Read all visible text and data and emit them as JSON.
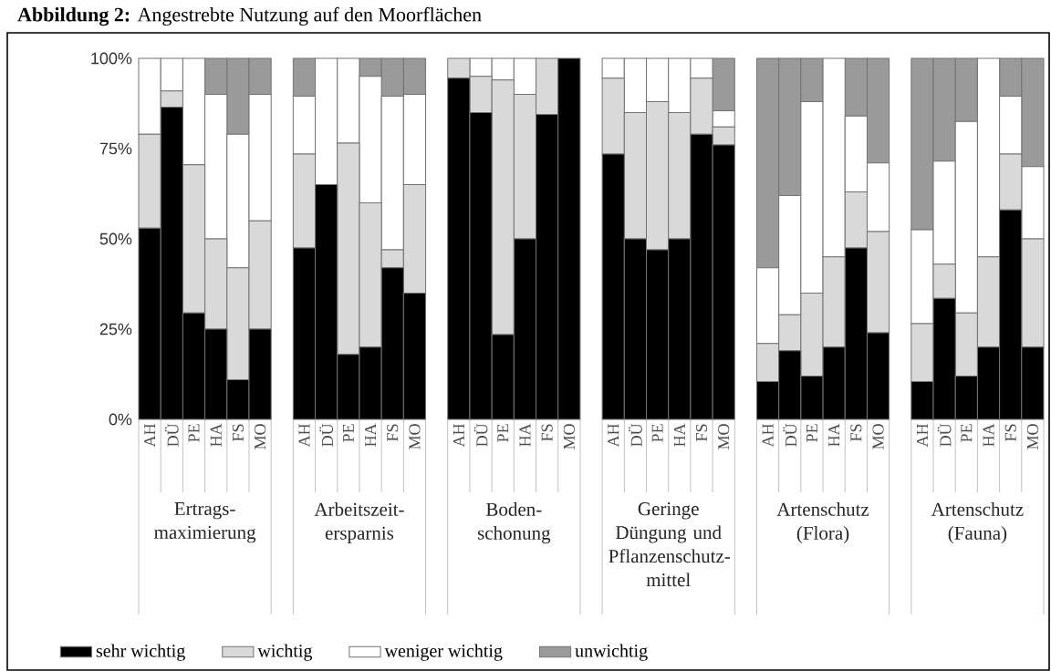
{
  "chart_data": [
    {
      "type": "bar",
      "stacked": true,
      "title": "**Abbildung 2:** Angestrebte Nutzung auf den Moorflächen",
      "categories": [
        "AH",
        "DÜ",
        "PE",
        "HA",
        "FS",
        "MO"
      ],
      "xlabel": "Ertrags-maximierung",
      "series": [
        {
          "name": "sehr wichtig",
          "color": "#000000",
          "values": [
            53,
            86.5,
            29.5,
            25,
            11,
            25
          ]
        },
        {
          "name": "wichtig",
          "color": "#d9d9d9",
          "values": [
            26,
            4.5,
            41,
            25,
            31,
            30
          ]
        },
        {
          "name": "weniger wichtig",
          "color": "#ffffff",
          "values": [
            21,
            9,
            29.5,
            40,
            37,
            35
          ]
        },
        {
          "name": "unwichtig",
          "color": "#9a9a9a",
          "values": [
            0,
            0,
            0,
            10,
            21,
            10
          ]
        }
      ],
      "ylim": [
        0,
        100
      ],
      "yticks": [
        {
          "value": 0,
          "label": "0%"
        },
        {
          "value": 25,
          "label": "25%"
        },
        {
          "value": 50,
          "label": "50%"
        },
        {
          "value": 75,
          "label": "75%"
        },
        {
          "value": 100,
          "label": "100%"
        }
      ],
      "legend": "bottom"
    },
    {
      "type": "bar",
      "stacked": true,
      "categories": [
        "AH",
        "DÜ",
        "PE",
        "HA",
        "FS",
        "MO"
      ],
      "xlabel": "Arbeitszeit-ersparnis",
      "series": [
        {
          "color": "#000000",
          "values": [
            47.5,
            65,
            18,
            20,
            42,
            35
          ]
        },
        {
          "color": "#d9d9d9",
          "values": [
            26,
            0,
            58.5,
            40,
            5,
            30
          ]
        },
        {
          "color": "#ffffff",
          "values": [
            16,
            35,
            23.5,
            35,
            42.5,
            25
          ]
        },
        {
          "color": "#9a9a9a",
          "values": [
            10.5,
            0,
            0,
            5,
            10.5,
            10
          ]
        }
      ],
      "ylim": [
        0,
        100
      ],
      "tick_labels": "x"
    },
    {
      "type": "bar",
      "stacked": true,
      "categories": [
        "AH",
        "DÜ",
        "PE",
        "HA",
        "FS",
        "MO"
      ],
      "xlabel": "Boden-schonung",
      "series": [
        {
          "color": "#000000",
          "values": [
            94.5,
            85,
            23.5,
            50,
            84.5,
            100
          ]
        },
        {
          "color": "#d9d9d9",
          "values": [
            5.5,
            10,
            70.5,
            40,
            15.5,
            0
          ]
        },
        {
          "color": "#ffffff",
          "values": [
            0,
            5,
            6,
            10,
            0,
            0
          ]
        },
        {
          "color": "#9a9a9a",
          "values": [
            0,
            0,
            0,
            0,
            0,
            0
          ]
        }
      ],
      "ylim": [
        0,
        100
      ],
      "tick_labels": "x"
    },
    {
      "type": "bar",
      "stacked": true,
      "categories": [
        "AH",
        "DÜ",
        "PE",
        "HA",
        "FS",
        "MO"
      ],
      "xlabel": "Geringe Düngung und Pflanzenschutz-mittel",
      "series": [
        {
          "color": "#000000",
          "values": [
            73.5,
            50,
            47,
            50,
            79,
            76
          ]
        },
        {
          "color": "#d9d9d9",
          "values": [
            21,
            35,
            41,
            35,
            15.5,
            5
          ]
        },
        {
          "color": "#ffffff",
          "values": [
            5.5,
            15,
            12,
            15,
            5.5,
            4.5
          ]
        },
        {
          "color": "#9a9a9a",
          "values": [
            0,
            0,
            0,
            0,
            0,
            14.5
          ]
        }
      ],
      "ylim": [
        0,
        100
      ],
      "tick_labels": "x"
    },
    {
      "type": "bar",
      "stacked": true,
      "categories": [
        "AH",
        "DÜ",
        "PE",
        "HA",
        "FS",
        "MO"
      ],
      "xlabel": "Artenschutz (Flora)",
      "series": [
        {
          "color": "#000000",
          "values": [
            10.5,
            19,
            12,
            20,
            47.5,
            24
          ]
        },
        {
          "color": "#d9d9d9",
          "values": [
            10.5,
            10,
            23,
            25,
            15.5,
            28
          ]
        },
        {
          "color": "#ffffff",
          "values": [
            21,
            33,
            53,
            55,
            21,
            19
          ]
        },
        {
          "color": "#9a9a9a",
          "values": [
            58,
            38,
            12,
            0,
            16,
            29
          ]
        }
      ],
      "ylim": [
        0,
        100
      ],
      "tick_labels": "x"
    },
    {
      "type": "bar",
      "stacked": true,
      "categories": [
        "AH",
        "DÜ",
        "PE",
        "HA",
        "FS",
        "MO"
      ],
      "xlabel": "Artenschutz (Fauna)",
      "series": [
        {
          "color": "#000000",
          "values": [
            10.5,
            33.5,
            12,
            20,
            58,
            20
          ]
        },
        {
          "color": "#d9d9d9",
          "values": [
            16,
            9.5,
            17.5,
            25,
            15.5,
            30
          ]
        },
        {
          "color": "#ffffff",
          "values": [
            26,
            28.5,
            53,
            55,
            16,
            20
          ]
        },
        {
          "color": "#9a9a9a",
          "values": [
            47.5,
            28.5,
            17.5,
            0,
            10.5,
            30
          ]
        }
      ],
      "ylim": [
        0,
        100
      ],
      "tick_labels": "x"
    }
  ]
}
